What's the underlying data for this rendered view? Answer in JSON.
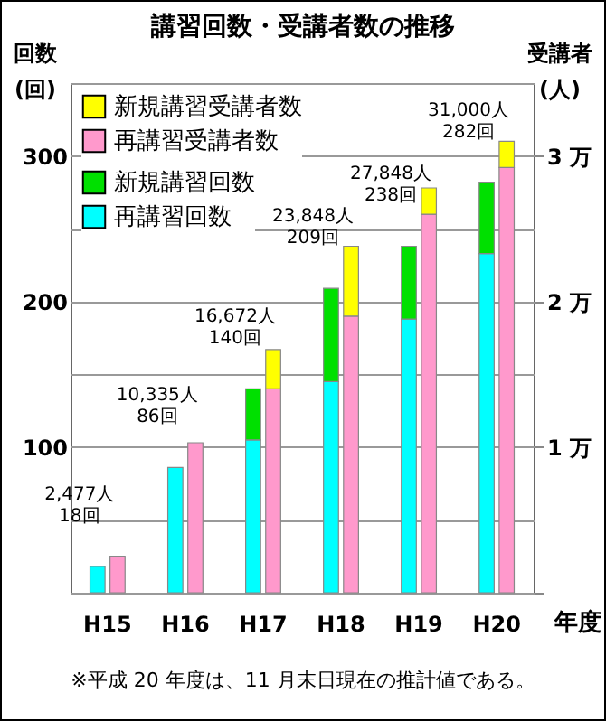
{
  "chart_data": {
    "type": "bar",
    "title": "講習回数・受講者数の推移",
    "xlabel": "年度",
    "ylabel": "回数\n(回)",
    "y2label": "受講者\n(人)",
    "categories": [
      "H15",
      "H16",
      "H17",
      "H18",
      "H19",
      "H20"
    ],
    "series": [
      {
        "name": "再講習回数",
        "color": "#00ffff",
        "values": [
          18,
          86,
          105,
          145,
          188,
          233
        ]
      },
      {
        "name": "新規講習回数",
        "color": "#00e000",
        "values": [
          null,
          null,
          35,
          64,
          50,
          49
        ]
      },
      {
        "name": "再講習受講者数",
        "color": "#ff99cc",
        "axis": "y2",
        "values": [
          0.25,
          1.03,
          1.4,
          1.9,
          2.6,
          2.92
        ]
      },
      {
        "name": "新規講習受講者数",
        "color": "#ffff00",
        "axis": "y2",
        "values": [
          null,
          null,
          0.27,
          0.48,
          0.18,
          0.18
        ]
      }
    ],
    "stacked": true,
    "ylim": [
      0,
      350
    ],
    "yticks": [
      {
        "value": 0,
        "label": null
      },
      {
        "value": 50,
        "label": null
      },
      100,
      {
        "value": 150,
        "label": null
      },
      200,
      {
        "value": 250,
        "label": null
      },
      300,
      {
        "value": 350,
        "label": null
      }
    ],
    "y2lim": [
      0,
      3.5
    ],
    "y2ticks": [
      {
        "value": 0,
        "label": null
      },
      {
        "value": 1,
        "label": "1 万"
      },
      {
        "value": 2,
        "label": "2 万"
      },
      {
        "value": 3,
        "label": "3 万"
      }
    ],
    "grid": "y",
    "legend": "top left",
    "annotations": [
      {
        "text": "2,477人\n18回",
        "x": "H15",
        "y": 18
      },
      {
        "text": "10,335人\n86回",
        "x": "H16",
        "y": 86
      },
      {
        "text": "16,672人\n140回",
        "x": "H17",
        "y": 140
      },
      {
        "text": "23,848人\n209回",
        "x": "H18",
        "y": 209
      },
      {
        "text": "27,848人\n238回",
        "x": "H19",
        "y": 238
      },
      {
        "text": "31,000人\n282回",
        "x": "H20",
        "y": 282
      },
      "※平成 20 年度は、11 月末日現在の推計値である。"
    ]
  }
}
